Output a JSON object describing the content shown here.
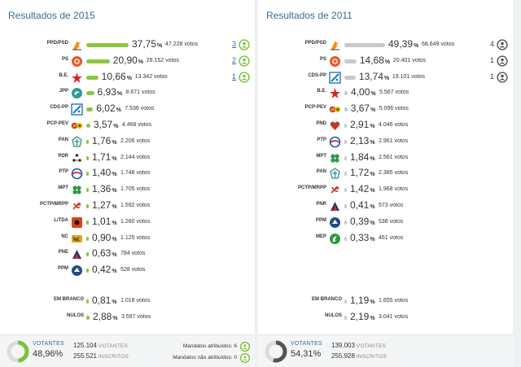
{
  "colors": {
    "bar2015": "#8cc63f",
    "bar2011": "#c9c9c9",
    "seatGreen": "#7cc23a",
    "seatGrey": "#555555",
    "title": "#3b6c8e"
  },
  "left": {
    "title": "Resultados de 2015",
    "rows": [
      {
        "party": "PPD/PSD",
        "logo": "psd-logo-icon",
        "logoColor": "#f39200",
        "pct": "37,75",
        "pctValue": 37.75,
        "votes": "47.228 votos",
        "seats": "3"
      },
      {
        "party": "PS",
        "logo": "ps-logo-icon",
        "logoColor": "#e4572e",
        "pct": "20,90",
        "pctValue": 20.9,
        "votes": "26.152 votos",
        "seats": "2"
      },
      {
        "party": "B.E.",
        "logo": "be-logo-icon",
        "logoColor": "#d7262e",
        "pct": "10,66",
        "pctValue": 10.66,
        "votes": "13.342 votos",
        "seats": "1"
      },
      {
        "party": "JPP",
        "logo": "jpp-logo-icon",
        "logoColor": "#2a9d8f",
        "pct": "6,93",
        "pctValue": 6.93,
        "votes": "8.671 votos"
      },
      {
        "party": "CDS-PP",
        "logo": "cds-logo-icon",
        "logoColor": "#1f78c1",
        "pct": "6,02",
        "pctValue": 6.02,
        "votes": "7.536 votos"
      },
      {
        "party": "PCP-PEV",
        "logo": "pcp-pev-logo-icon",
        "logoColor": "#c0392b",
        "pct": "3,57",
        "pctValue": 3.57,
        "votes": "4.468 votos"
      },
      {
        "party": "PAN",
        "logo": "pan-logo-icon",
        "logoColor": "#2e8b8b",
        "pct": "1,76",
        "pctValue": 1.76,
        "votes": "2.206 votos"
      },
      {
        "party": "PDR",
        "logo": "pdr-logo-icon",
        "logoColor": "#333333",
        "pct": "1,71",
        "pctValue": 1.71,
        "votes": "2.144 votos"
      },
      {
        "party": "PTP",
        "logo": "ptp-logo-icon",
        "logoColor": "#1e5aa8",
        "pct": "1,40",
        "pctValue": 1.4,
        "votes": "1.748 votos"
      },
      {
        "party": "MPT",
        "logo": "mpt-logo-icon",
        "logoColor": "#2c9a3f",
        "pct": "1,36",
        "pctValue": 1.36,
        "votes": "1.705 votos"
      },
      {
        "party": "PCTP/MRPP",
        "logo": "mrpp-logo-icon",
        "logoColor": "#c0392b",
        "pct": "1,27",
        "pctValue": 1.27,
        "votes": "1.592 votos"
      },
      {
        "party": "L/TDA",
        "logo": "livre-logo-icon",
        "logoColor": "#d9441f",
        "pct": "1,01",
        "pctValue": 1.01,
        "votes": "1.260 votos"
      },
      {
        "party": "NC",
        "logo": "nc-logo-icon",
        "logoColor": "#e2a51a",
        "pct": "0,90",
        "pctValue": 0.9,
        "votes": "1.125 votos"
      },
      {
        "party": "PNE",
        "logo": "pne-logo-icon",
        "logoColor": "#23356f",
        "pct": "0,63",
        "pctValue": 0.63,
        "votes": "784 votos"
      },
      {
        "party": "PPM",
        "logo": "ppm-logo-icon",
        "logoColor": "#1f4e8c",
        "pct": "0,42",
        "pctValue": 0.42,
        "votes": "528 votos"
      }
    ],
    "extra": [
      {
        "party": "EM BRANCO",
        "pct": "0,81",
        "pctValue": 0.81,
        "votes": "1.018 votos"
      },
      {
        "party": "NULOS",
        "pct": "2,88",
        "pctValue": 2.88,
        "votes": "3.597 votos"
      }
    ],
    "footer": {
      "label": "VOTANTES",
      "pct": "48,96%",
      "pctValue": 48.96,
      "votantes": "125.104",
      "votantesLabel": "VOTANTES",
      "inscritos": "255.521",
      "inscritosLabel": "INSCRITOS",
      "mandatosAtribuidos": "Mandatos atribuídos: 6",
      "mandatosNao": "Mandatos não atribuídos: 0"
    }
  },
  "right": {
    "title": "Resultados de 2011",
    "rows": [
      {
        "party": "PPD/PSD",
        "logo": "psd-logo-icon",
        "logoColor": "#f39200",
        "pct": "49,39",
        "pctValue": 49.39,
        "votes": "68.649 votos",
        "seats": "4"
      },
      {
        "party": "PS",
        "logo": "ps-logo-icon",
        "logoColor": "#e4572e",
        "pct": "14,68",
        "pctValue": 14.68,
        "votes": "20.401 votos",
        "seats": "1"
      },
      {
        "party": "CDS-PP",
        "logo": "cds-logo-icon",
        "logoColor": "#1f78c1",
        "pct": "13,74",
        "pctValue": 13.74,
        "votes": "19.101 votos",
        "seats": "1"
      },
      {
        "party": "B.E.",
        "logo": "be-logo-icon",
        "logoColor": "#d7262e",
        "pct": "4,00",
        "pctValue": 4.0,
        "votes": "5.567 votos"
      },
      {
        "party": "PCP-PEV",
        "logo": "pcp-pev-logo-icon",
        "logoColor": "#c0392b",
        "pct": "3,67",
        "pctValue": 3.67,
        "votes": "5.096 votos"
      },
      {
        "party": "PND",
        "logo": "pnd-logo-icon",
        "logoColor": "#c0392b",
        "pct": "2,91",
        "pctValue": 2.91,
        "votes": "4.046 votos"
      },
      {
        "party": "PTP",
        "logo": "ptp-logo-icon",
        "logoColor": "#1e5aa8",
        "pct": "2,13",
        "pctValue": 2.13,
        "votes": "2.961 votos"
      },
      {
        "party": "MPT",
        "logo": "mpt-logo-icon",
        "logoColor": "#2c9a3f",
        "pct": "1,84",
        "pctValue": 1.84,
        "votes": "2.561 votos"
      },
      {
        "party": "PAN",
        "logo": "pan-logo-icon",
        "logoColor": "#2e8b8b",
        "pct": "1,72",
        "pctValue": 1.72,
        "votes": "2.385 votos"
      },
      {
        "party": "PCTP/MRPP",
        "logo": "mrpp-logo-icon",
        "logoColor": "#c0392b",
        "pct": "1,42",
        "pctValue": 1.42,
        "votes": "1.968 votos"
      },
      {
        "party": "PNR",
        "logo": "pnr-logo-icon",
        "logoColor": "#23356f",
        "pct": "0,41",
        "pctValue": 0.41,
        "votes": "573 votos"
      },
      {
        "party": "PPM",
        "logo": "ppm-logo-icon",
        "logoColor": "#1f4e8c",
        "pct": "0,39",
        "pctValue": 0.39,
        "votes": "538 votos"
      },
      {
        "party": "MEP",
        "logo": "mep-logo-icon",
        "logoColor": "#2c9a3f",
        "pct": "0,33",
        "pctValue": 0.33,
        "votes": "461 votos"
      }
    ],
    "extra": [
      {
        "party": "EM BRANCO",
        "pct": "1,19",
        "pctValue": 1.19,
        "votes": "1.655 votos"
      },
      {
        "party": "NULOS",
        "pct": "2,19",
        "pctValue": 2.19,
        "votes": "3.041 votos"
      }
    ],
    "footer": {
      "label": "VOTANTES",
      "pct": "54,31%",
      "pctValue": 54.31,
      "votantes": "139.003",
      "votantesLabel": "VOTANTES",
      "inscritos": "255.928",
      "inscritosLabel": "INSCRITOS"
    }
  }
}
